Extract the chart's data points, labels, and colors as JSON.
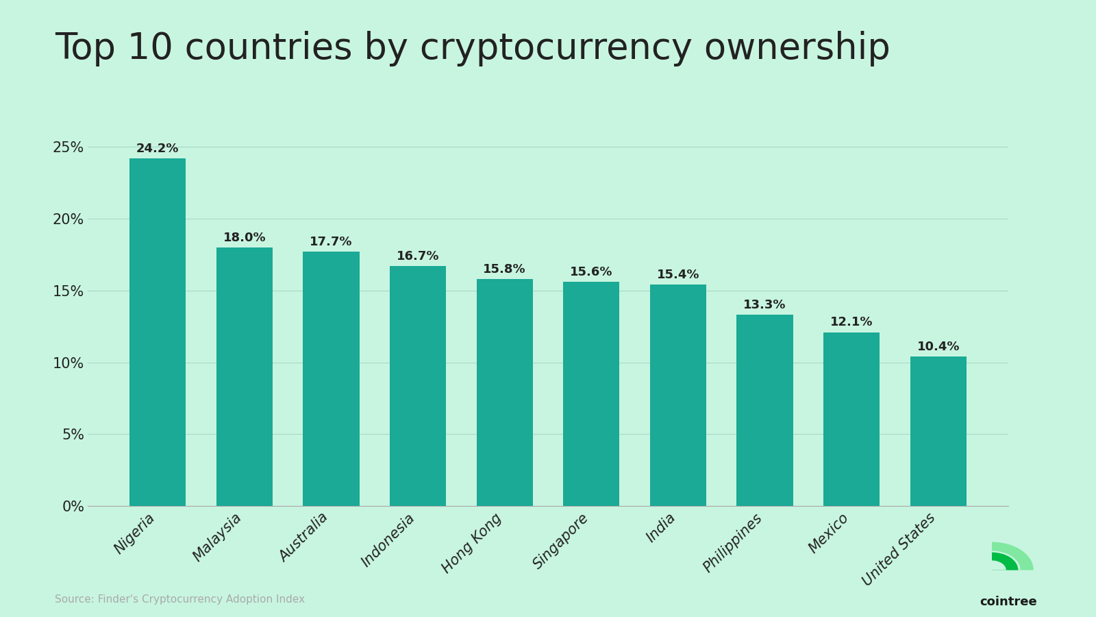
{
  "title": "Top 10 countries by cryptocurrency ownership",
  "categories": [
    "Nigeria",
    "Malaysia",
    "Australia",
    "Indonesia",
    "Hong Kong",
    "Singapore",
    "India",
    "Philippines",
    "Mexico",
    "United States"
  ],
  "values": [
    24.2,
    18.0,
    17.7,
    16.7,
    15.8,
    15.6,
    15.4,
    13.3,
    12.1,
    10.4
  ],
  "bar_color": "#1aaa96",
  "background_color": "#c8f5e0",
  "title_fontsize": 38,
  "tick_fontsize": 15,
  "ytick_labels": [
    "0%",
    "5%",
    "10%",
    "15%",
    "20%",
    "25%"
  ],
  "ytick_values": [
    0,
    5,
    10,
    15,
    20,
    25
  ],
  "ylim": [
    0,
    27.5
  ],
  "source_text": "Source: Finder's Cryptocurrency Adoption Index",
  "source_fontsize": 11,
  "bar_label_fontsize": 13,
  "grid_color": "#a8d8c8",
  "text_color": "#222222",
  "source_color": "#aaaaaa"
}
